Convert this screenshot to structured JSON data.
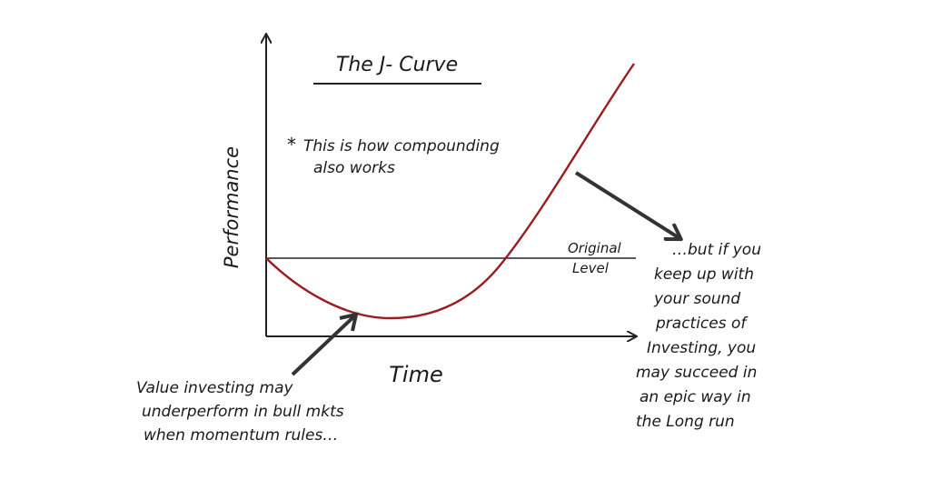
{
  "title": "The J- Curve",
  "y_axis_label": "Performance",
  "x_axis_label": "Time",
  "note": {
    "marker": "*",
    "lines": [
      "This is how compounding",
      "also works"
    ]
  },
  "reference_label": {
    "lines": [
      "Original",
      "Level"
    ]
  },
  "annotation_right": {
    "lines": [
      "…but if you",
      "keep up with",
      "your sound",
      "practices of",
      "Investing, you",
      "may succeed in",
      "an epic way in",
      "the Long run"
    ]
  },
  "annotation_left": {
    "lines": [
      "Value investing may",
      "underperform in bull mkts",
      "when momentum rules…"
    ]
  }
}
